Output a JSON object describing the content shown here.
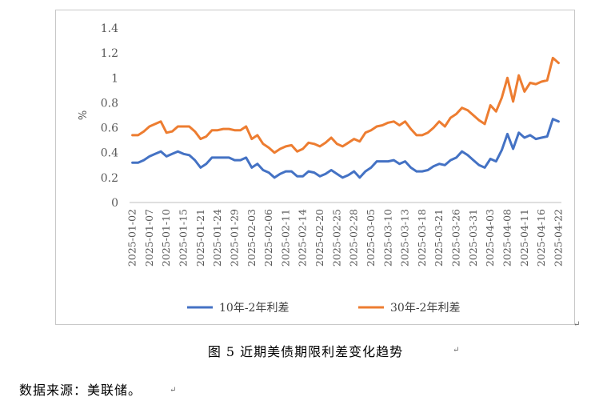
{
  "chart_data": {
    "type": "line",
    "ylabel": "%",
    "ylim": [
      0,
      1.4
    ],
    "yticks": [
      "0",
      "0.2",
      "0.4",
      "0.6",
      "0.8",
      "1",
      "1.2",
      "1.4"
    ],
    "grid": false,
    "legend_position": "bottom",
    "tick_labels": [
      "2025-01-02",
      "2025-01-07",
      "2025-01-10",
      "2025-01-15",
      "2025-01-21",
      "2025-01-24",
      "2025-01-29",
      "2025-02-03",
      "2025-02-06",
      "2025-02-11",
      "2025-02-14",
      "2025-02-20",
      "2025-02-25",
      "2025-02-28",
      "2025-03-05",
      "2025-03-10",
      "2025-03-13",
      "2025-03-18",
      "2025-03-21",
      "2025-03-26",
      "2025-03-31",
      "2025-04-03",
      "2025-04-08",
      "2025-04-11",
      "2025-04-16",
      "2025-04-22"
    ],
    "series": [
      {
        "name": "10年-2年利差",
        "color": "#4472C4",
        "values": [
          0.32,
          0.32,
          0.34,
          0.37,
          0.39,
          0.41,
          0.37,
          0.39,
          0.41,
          0.39,
          0.38,
          0.34,
          0.28,
          0.31,
          0.36,
          0.36,
          0.36,
          0.36,
          0.34,
          0.34,
          0.36,
          0.28,
          0.31,
          0.26,
          0.24,
          0.2,
          0.23,
          0.25,
          0.25,
          0.21,
          0.21,
          0.25,
          0.24,
          0.21,
          0.23,
          0.26,
          0.23,
          0.2,
          0.22,
          0.25,
          0.2,
          0.25,
          0.28,
          0.33,
          0.33,
          0.33,
          0.34,
          0.31,
          0.33,
          0.28,
          0.25,
          0.25,
          0.26,
          0.29,
          0.31,
          0.3,
          0.34,
          0.36,
          0.41,
          0.38,
          0.34,
          0.3,
          0.28,
          0.35,
          0.33,
          0.42,
          0.55,
          0.43,
          0.56,
          0.52,
          0.54,
          0.51,
          0.52,
          0.53,
          0.67,
          0.65
        ]
      },
      {
        "name": "30年-2年利差",
        "color": "#ED7D31",
        "values": [
          0.54,
          0.54,
          0.57,
          0.61,
          0.63,
          0.65,
          0.56,
          0.57,
          0.61,
          0.61,
          0.61,
          0.57,
          0.51,
          0.53,
          0.58,
          0.58,
          0.59,
          0.59,
          0.58,
          0.58,
          0.61,
          0.51,
          0.54,
          0.47,
          0.44,
          0.4,
          0.43,
          0.45,
          0.46,
          0.41,
          0.43,
          0.48,
          0.47,
          0.45,
          0.48,
          0.52,
          0.47,
          0.45,
          0.48,
          0.51,
          0.49,
          0.56,
          0.58,
          0.61,
          0.62,
          0.64,
          0.65,
          0.62,
          0.65,
          0.59,
          0.54,
          0.54,
          0.56,
          0.6,
          0.65,
          0.61,
          0.68,
          0.71,
          0.76,
          0.74,
          0.7,
          0.66,
          0.63,
          0.78,
          0.73,
          0.84,
          1.0,
          0.81,
          1.02,
          0.89,
          0.96,
          0.95,
          0.97,
          0.98,
          1.16,
          1.12
        ]
      }
    ]
  },
  "caption": "图 5  近期美债期限利差变化趋势",
  "source_note": "数据来源：美联储。"
}
